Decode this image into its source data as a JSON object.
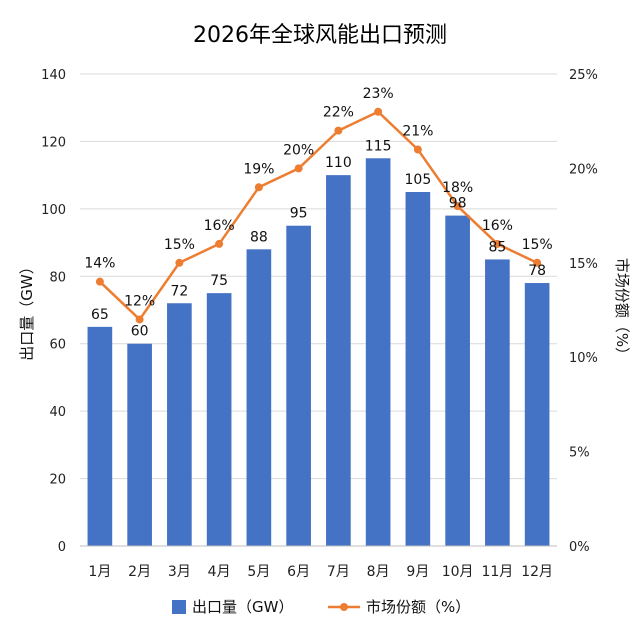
{
  "chart_data": {
    "type": "bar",
    "title": "2026年全球风能出口预测",
    "categories": [
      "1月",
      "2月",
      "3月",
      "4月",
      "5月",
      "6月",
      "7月",
      "8月",
      "9月",
      "10月",
      "11月",
      "12月"
    ],
    "series": [
      {
        "name": "出口量（GW）",
        "type": "bar",
        "axis": "left",
        "color": "#4472C4",
        "values": [
          65,
          60,
          72,
          75,
          88,
          95,
          110,
          115,
          105,
          98,
          85,
          78
        ],
        "labels": [
          "65",
          "60",
          "72",
          "75",
          "88",
          "95",
          "110",
          "115",
          "105",
          "98",
          "85",
          "78"
        ]
      },
      {
        "name": "市场份额（%）",
        "type": "line",
        "axis": "right",
        "color": "#ED7D31",
        "values": [
          14,
          12,
          15,
          16,
          19,
          20,
          22,
          23,
          21,
          18,
          16,
          15
        ],
        "labels": [
          "14%",
          "12%",
          "15%",
          "16%",
          "19%",
          "20%",
          "22%",
          "23%",
          "21%",
          "18%",
          "16%",
          "15%"
        ]
      }
    ],
    "y_left": {
      "label": "出口量（GW）",
      "range": [
        0,
        140
      ],
      "ticks": [
        0,
        20,
        40,
        60,
        80,
        100,
        120,
        140
      ],
      "tick_labels": [
        "0",
        "20",
        "40",
        "60",
        "80",
        "100",
        "120",
        "140"
      ]
    },
    "y_right": {
      "label": "市场份额（%）",
      "range": [
        0,
        25
      ],
      "ticks": [
        0,
        5,
        10,
        15,
        20,
        25
      ],
      "tick_labels": [
        "0%",
        "5%",
        "10%",
        "15%",
        "20%",
        "25%"
      ]
    },
    "grid": true,
    "legend_position": "bottom"
  }
}
